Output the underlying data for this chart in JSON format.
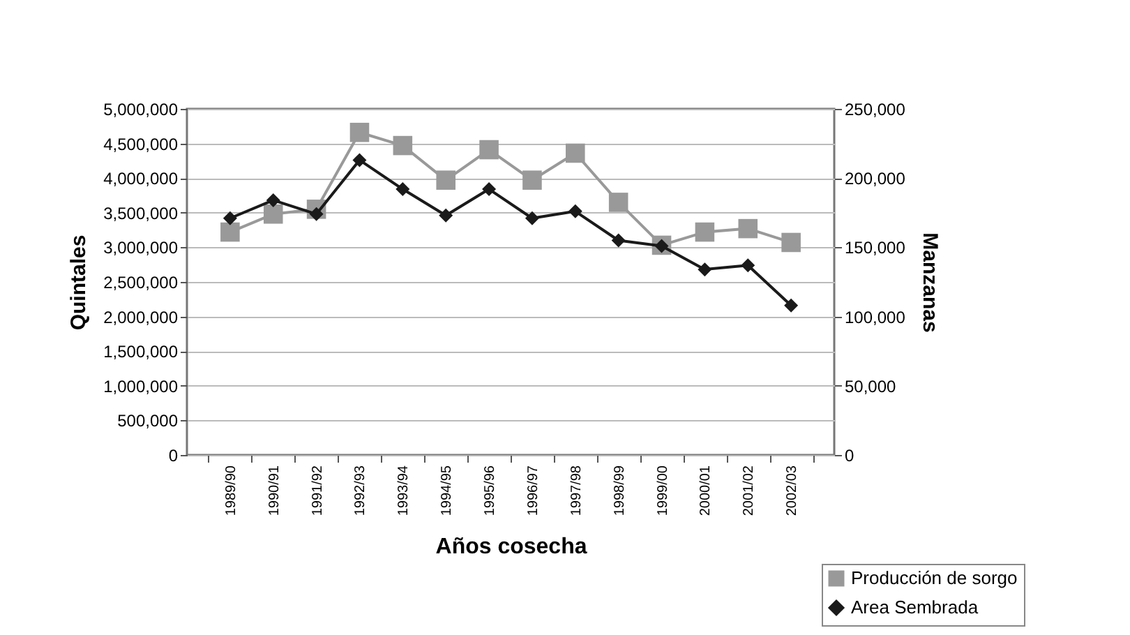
{
  "chart_data": {
    "type": "line",
    "xlabel": "Años cosecha",
    "ylabel": "Quintales",
    "y2label": "Manzanas",
    "categories": [
      "1989/90",
      "1990/91",
      "1991/92",
      "1992/93",
      "1993/94",
      "1994/95",
      "1995/96",
      "1996/97",
      "1997/98",
      "1998/99",
      "1999/00",
      "2000/01",
      "2001/02",
      "2002/03"
    ],
    "series": [
      {
        "name": "Producción de sorgo",
        "color": "#999999",
        "marker": "square",
        "values": [
          3220000,
          3480000,
          3550000,
          4660000,
          4470000,
          3970000,
          4410000,
          3970000,
          4360000,
          3650000,
          3030000,
          3220000,
          3270000,
          3070000
        ]
      },
      {
        "name": "Area Sembrada",
        "color": "#1a1a1a",
        "marker": "diamond",
        "axis": "y2",
        "values": [
          171000,
          184000,
          174000,
          213000,
          192000,
          173000,
          192000,
          171000,
          176000,
          155000,
          151000,
          134000,
          137000,
          108000
        ]
      }
    ],
    "ylim": [
      0,
      5000000
    ],
    "yticks": [
      {
        "value": 0,
        "label": "0"
      },
      {
        "value": 500000,
        "label": "500,000"
      },
      {
        "value": 1000000,
        "label": "1,000,000"
      },
      {
        "value": 1500000,
        "label": "1,500,000"
      },
      {
        "value": 2000000,
        "label": "2,000,000"
      },
      {
        "value": 2500000,
        "label": "2,500,000"
      },
      {
        "value": 3000000,
        "label": "3,000,000"
      },
      {
        "value": 3500000,
        "label": "3,500,000"
      },
      {
        "value": 4000000,
        "label": "4,000,000"
      },
      {
        "value": 4500000,
        "label": "4,500,000"
      },
      {
        "value": 5000000,
        "label": "5,000,000"
      }
    ],
    "y2lim": [
      0,
      250000
    ],
    "y2ticks": [
      {
        "value": 0,
        "label": "0"
      },
      {
        "value": 50000,
        "label": "50,000"
      },
      {
        "value": 100000,
        "label": "100,000"
      },
      {
        "value": 150000,
        "label": "150,000"
      },
      {
        "value": 200000,
        "label": "200,000"
      },
      {
        "value": 250000,
        "label": "250,000"
      }
    ],
    "grid": "y",
    "legend": "bottom right"
  }
}
